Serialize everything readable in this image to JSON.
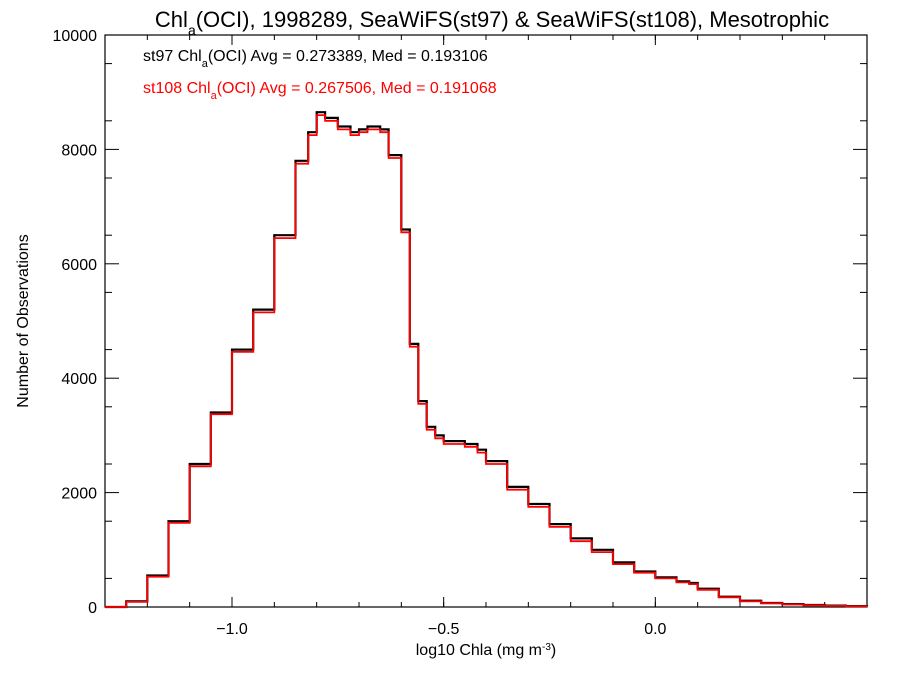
{
  "chart_data": {
    "type": "line",
    "title": {
      "pre": "Chl",
      "sub": "a",
      "post": "(OCI), 1998289, SeaWiFS(st97) & SeaWiFS(st108), Mesotrophic"
    },
    "xlabel": {
      "pre": "log10 Chla (mg m",
      "sup": "-3",
      "post": ")"
    },
    "ylabel": "Number of Observations",
    "xlim": [
      -1.3,
      0.5
    ],
    "ylim": [
      0,
      10000
    ],
    "x_ticks": [
      {
        "value": -1.0,
        "label": "−1.0"
      },
      {
        "value": -0.5,
        "label": "−0.5"
      },
      {
        "value": 0.0,
        "label": "0.0"
      }
    ],
    "y_ticks": [
      {
        "value": 0,
        "label": "0"
      },
      {
        "value": 2000,
        "label": "2000"
      },
      {
        "value": 4000,
        "label": "4000"
      },
      {
        "value": 6000,
        "label": "6000"
      },
      {
        "value": 8000,
        "label": "8000"
      },
      {
        "value": 10000,
        "label": "10000"
      }
    ],
    "grid": false,
    "legend_position": "top-left",
    "x": [
      -1.3,
      -1.25,
      -1.2,
      -1.15,
      -1.1,
      -1.05,
      -1.0,
      -0.95,
      -0.9,
      -0.85,
      -0.82,
      -0.8,
      -0.78,
      -0.75,
      -0.72,
      -0.7,
      -0.68,
      -0.65,
      -0.63,
      -0.6,
      -0.58,
      -0.56,
      -0.54,
      -0.52,
      -0.5,
      -0.45,
      -0.42,
      -0.4,
      -0.35,
      -0.3,
      -0.25,
      -0.2,
      -0.15,
      -0.1,
      -0.05,
      0.0,
      0.05,
      0.08,
      0.1,
      0.15,
      0.2,
      0.25,
      0.3,
      0.35,
      0.4,
      0.45,
      0.5
    ],
    "series": [
      {
        "name": "st97",
        "label": {
          "pre": "st97 Chl",
          "sub": "a",
          "post": "(OCI) Avg = 0.273389, Med = 0.193106"
        },
        "color": "#000000",
        "values": [
          0,
          100,
          550,
          1500,
          2500,
          3400,
          4500,
          5200,
          6500,
          7800,
          8300,
          8650,
          8550,
          8400,
          8300,
          8350,
          8400,
          8350,
          7900,
          6600,
          4600,
          3600,
          3150,
          3000,
          2900,
          2850,
          2750,
          2550,
          2100,
          1800,
          1450,
          1200,
          1000,
          780,
          620,
          520,
          450,
          420,
          320,
          180,
          110,
          70,
          50,
          35,
          25,
          15,
          10
        ]
      },
      {
        "name": "st108",
        "label": {
          "pre": "st108 Chl",
          "sub": "a",
          "post": "(OCI) Avg = 0.267506, Med = 0.191068"
        },
        "color": "#ff0000",
        "values": [
          0,
          90,
          530,
          1470,
          2460,
          3370,
          4460,
          5150,
          6450,
          7750,
          8250,
          8600,
          8500,
          8350,
          8250,
          8300,
          8350,
          8300,
          7850,
          6550,
          4550,
          3550,
          3100,
          2950,
          2850,
          2800,
          2700,
          2500,
          2050,
          1750,
          1400,
          1150,
          960,
          750,
          600,
          500,
          430,
          400,
          300,
          170,
          100,
          65,
          45,
          30,
          20,
          12,
          8
        ]
      }
    ]
  }
}
